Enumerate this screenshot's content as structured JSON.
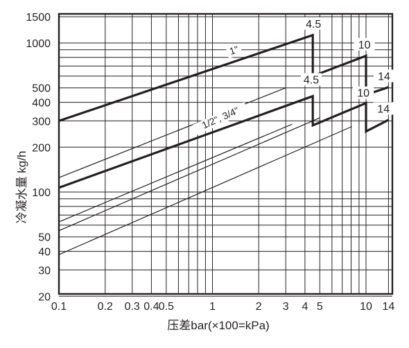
{
  "chart_data": {
    "type": "line",
    "xscale": "log",
    "yscale": "log",
    "xlim": [
      0.1,
      14
    ],
    "ylim": [
      16,
      1500
    ],
    "xlabel": "压差bar(×100=kPa)",
    "ylabel": "冷凝水量 kg/h",
    "grid": true,
    "x_ticks": [
      {
        "v": 0.1,
        "label": "0.1"
      },
      {
        "v": 0.2,
        "label": "0.2"
      },
      {
        "v": 0.3,
        "label": "0.3"
      },
      {
        "v": 0.4,
        "label": "0.4"
      },
      {
        "v": 0.5,
        "label": "0.5"
      },
      {
        "v": 1,
        "label": "1"
      },
      {
        "v": 2,
        "label": "2"
      },
      {
        "v": 3,
        "label": "3"
      },
      {
        "v": 4,
        "label": "4"
      },
      {
        "v": 5,
        "label": "5"
      },
      {
        "v": 10,
        "label": "10"
      },
      {
        "v": 14,
        "label": "14"
      }
    ],
    "x_grid": [
      0.1,
      0.2,
      0.3,
      0.4,
      0.5,
      0.6,
      0.7,
      0.8,
      0.9,
      1,
      2,
      3,
      4,
      5,
      6,
      7,
      8,
      9,
      10,
      14
    ],
    "y_ticks": [
      {
        "v": 20,
        "label": "20"
      },
      {
        "v": 30,
        "label": "30"
      },
      {
        "v": 40,
        "label": "40"
      },
      {
        "v": 50,
        "label": "50"
      },
      {
        "v": 100,
        "label": "100"
      },
      {
        "v": 200,
        "label": "200"
      },
      {
        "v": 300,
        "label": "300"
      },
      {
        "v": 400,
        "label": "400"
      },
      {
        "v": 500,
        "label": "500"
      },
      {
        "v": 1000,
        "label": "1000"
      },
      {
        "v": 1500,
        "label": "1500"
      }
    ],
    "y_grid": [
      20,
      30,
      40,
      50,
      60,
      70,
      80,
      90,
      100,
      200,
      300,
      400,
      500,
      600,
      700,
      800,
      900,
      1000,
      1500
    ],
    "series": [
      {
        "name": "1\"",
        "weight": "heavy",
        "points": [
          [
            0.1,
            300
          ],
          [
            4.5,
            1130
          ],
          [
            4.5,
            600
          ],
          [
            10,
            820
          ],
          [
            10,
            450
          ],
          [
            14,
            505
          ]
        ]
      },
      {
        "name": "1/2\", 3/4\"",
        "weight": "heavy",
        "points": [
          [
            0.1,
            107
          ],
          [
            4.5,
            440
          ],
          [
            4.5,
            280
          ],
          [
            10,
            395
          ],
          [
            10,
            255
          ],
          [
            14,
            305
          ]
        ]
      },
      {
        "weight": "thin",
        "points": [
          [
            0.1,
            125
          ],
          [
            3,
            500
          ]
        ]
      },
      {
        "weight": "thin",
        "points": [
          [
            0.1,
            63
          ],
          [
            3.3,
            285
          ]
        ]
      },
      {
        "weight": "thin",
        "points": [
          [
            0.1,
            55
          ],
          [
            5,
            315
          ]
        ]
      },
      {
        "weight": "thin",
        "points": [
          [
            0.1,
            38
          ],
          [
            8.1,
            275
          ]
        ]
      }
    ],
    "annotations": [
      {
        "text": "4.5",
        "x": 4.55,
        "y": 1280
      },
      {
        "text": "10",
        "x": 9.75,
        "y": 930
      },
      {
        "text": "14",
        "x": 13.1,
        "y": 570
      },
      {
        "text": "4.5",
        "x": 4.4,
        "y": 540
      },
      {
        "text": "10",
        "x": 9.6,
        "y": 440
      },
      {
        "text": "14",
        "x": 13.0,
        "y": 345
      }
    ],
    "size_labels": [
      {
        "text": "1\"",
        "x": 1.4,
        "y": 850,
        "angle": -17
      },
      {
        "text": "1/2\", 3/4\"",
        "x": 1.15,
        "y": 300,
        "angle": -24
      }
    ]
  }
}
